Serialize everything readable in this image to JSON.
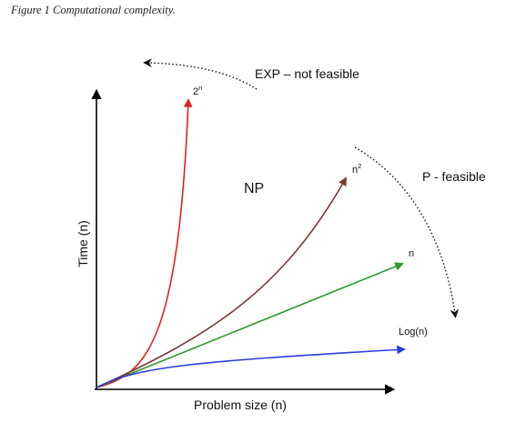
{
  "caption": "Figure 1 Computational complexity.",
  "axes": {
    "y_label": "Time (n)",
    "x_label": "Problem size (n)"
  },
  "regions": {
    "exp": "EXP – not feasible",
    "np": "NP",
    "p": "P - feasible"
  },
  "curves": {
    "exponential": {
      "label": "2",
      "sup": "n",
      "color": "#e02020"
    },
    "quadratic": {
      "label": "n",
      "sup": "2",
      "color": "#7a3a36"
    },
    "linear": {
      "label": "n",
      "color": "#2a9a2a"
    },
    "logarithmic": {
      "label": "Log(n)",
      "color": "#2a3ce0"
    }
  }
}
